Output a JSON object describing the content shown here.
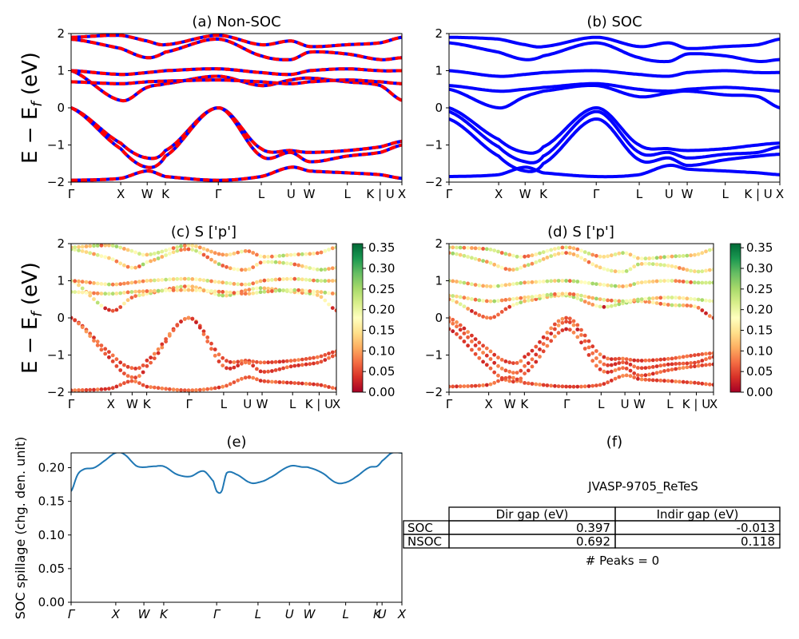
{
  "panels": {
    "a": {
      "title": "(a) Non-SOC"
    },
    "b": {
      "title": "(b) SOC"
    },
    "c": {
      "title": "(c)  S ['p']"
    },
    "d": {
      "title": "(d) S ['p']"
    },
    "e": {
      "title": "(e)"
    },
    "f": {
      "title": "(f)"
    }
  },
  "ylabel_band": "E − E",
  "ylabel_band_sub": "f",
  "ylabel_band_unit": " (eV)",
  "ylabel_spillage": "SOC spillage (chg. den. unit)",
  "kpath_labels": [
    "Γ",
    "X",
    "W",
    "K",
    "Γ",
    "L",
    "U",
    "W",
    "L",
    "K | U",
    "X"
  ],
  "kpath_labels_e": [
    "Γ",
    "X",
    "W",
    "K",
    "Γ",
    "L",
    "U",
    "W",
    "L",
    "K",
    "U",
    "X"
  ],
  "colors": {
    "soc": "#0000ff",
    "nonsoc_dash": "#ff0000",
    "spillage": "#1f77b4"
  },
  "colorbar": {
    "colormap": "RdYlGn",
    "min": 0.0,
    "max": 0.36,
    "ticks": [
      "0.00",
      "0.05",
      "0.10",
      "0.15",
      "0.20",
      "0.25",
      "0.30",
      "0.35"
    ]
  },
  "table": {
    "material": "JVASP-9705_ReTeS",
    "columns": [
      "Dir gap (eV)",
      "Indir gap (eV)"
    ],
    "rows": [
      {
        "label": "SOC",
        "dir": "0.397",
        "indir": "-0.013"
      },
      {
        "label": "NSOC",
        "dir": "0.692",
        "indir": "0.118"
      }
    ],
    "peaks": "# Peaks = 0"
  },
  "chart_data": [
    {
      "type": "line",
      "title": "(a) Non-SOC",
      "ylabel": "E − E_f (eV)",
      "ylim": [
        -2,
        2
      ],
      "yticks": [
        -2,
        -1,
        0,
        1,
        2
      ],
      "x_tick_labels": [
        "Γ",
        "X",
        "W",
        "K",
        "Γ",
        "L",
        "U",
        "W",
        "L",
        "K | U",
        "X"
      ],
      "x_tick_positions": [
        0,
        0.15,
        0.23,
        0.285,
        0.445,
        0.575,
        0.665,
        0.72,
        0.835,
        0.935,
        1.0
      ],
      "series": [
        {
          "values_at_ticks": [
            0.0,
            -0.95,
            -1.35,
            -1.15,
            0.0,
            -1.1,
            -1.15,
            -1.2,
            -1.15,
            -1.05,
            -0.9
          ]
        },
        {
          "values_at_ticks": [
            0.0,
            -1.1,
            -1.6,
            -1.3,
            0.0,
            -1.3,
            -1.2,
            -1.45,
            -1.3,
            -1.2,
            -1.0
          ]
        },
        {
          "values_at_ticks": [
            -1.95,
            -1.9,
            -1.7,
            -1.85,
            -1.95,
            -1.85,
            -1.6,
            -1.7,
            -1.75,
            -1.8,
            -1.9
          ]
        },
        {
          "values_at_ticks": [
            1.0,
            0.2,
            0.55,
            0.65,
            0.85,
            0.6,
            0.75,
            0.8,
            0.7,
            0.6,
            0.2
          ]
        },
        {
          "values_at_ticks": [
            0.7,
            0.65,
            0.7,
            0.72,
            0.75,
            0.7,
            0.65,
            0.7,
            0.75,
            0.7,
            0.65
          ]
        },
        {
          "values_at_ticks": [
            1.0,
            0.9,
            0.95,
            1.0,
            1.05,
            0.95,
            0.9,
            1.0,
            1.05,
            1.0,
            1.0
          ]
        },
        {
          "values_at_ticks": [
            1.85,
            1.6,
            1.35,
            1.5,
            1.85,
            1.4,
            1.3,
            1.5,
            1.45,
            1.3,
            1.35
          ]
        },
        {
          "values_at_ticks": [
            1.9,
            1.95,
            1.8,
            1.7,
            1.95,
            1.7,
            1.8,
            1.65,
            1.7,
            1.75,
            1.9
          ]
        }
      ]
    },
    {
      "type": "line",
      "title": "(b) SOC",
      "ylim": [
        -2,
        2
      ],
      "yticks": [
        -2,
        -1,
        0,
        1,
        2
      ],
      "x_tick_labels": [
        "Γ",
        "X",
        "W",
        "K",
        "Γ",
        "L",
        "U",
        "W",
        "L",
        "K | U",
        "X"
      ],
      "series": [
        {
          "values_at_ticks": [
            0.0,
            -0.85,
            -1.2,
            -1.05,
            0.0,
            -1.0,
            -1.1,
            -1.15,
            -1.1,
            -1.0,
            -0.95
          ]
        },
        {
          "values_at_ticks": [
            -0.1,
            -1.05,
            -1.45,
            -1.3,
            -0.1,
            -1.2,
            -1.2,
            -1.35,
            -1.25,
            -1.2,
            -1.05
          ]
        },
        {
          "values_at_ticks": [
            -0.3,
            -1.3,
            -1.7,
            -1.5,
            -0.3,
            -1.4,
            -1.35,
            -1.55,
            -1.4,
            -1.3,
            -1.25
          ]
        },
        {
          "values_at_ticks": [
            -1.85,
            -1.8,
            -1.6,
            -1.75,
            -1.85,
            -1.8,
            -1.55,
            -1.65,
            -1.7,
            -1.75,
            -1.8
          ]
        },
        {
          "values_at_ticks": [
            0.5,
            0.0,
            0.3,
            0.45,
            0.6,
            0.3,
            0.4,
            0.45,
            0.35,
            0.3,
            0.0
          ]
        },
        {
          "values_at_ticks": [
            0.6,
            0.45,
            0.5,
            0.55,
            0.65,
            0.5,
            0.45,
            0.5,
            0.55,
            0.5,
            0.45
          ]
        },
        {
          "values_at_ticks": [
            1.0,
            0.85,
            0.9,
            0.95,
            1.0,
            0.9,
            0.85,
            0.95,
            1.0,
            0.95,
            0.95
          ]
        },
        {
          "values_at_ticks": [
            1.75,
            1.5,
            1.3,
            1.4,
            1.75,
            1.35,
            1.25,
            1.45,
            1.4,
            1.25,
            1.3
          ]
        },
        {
          "values_at_ticks": [
            1.9,
            1.85,
            1.7,
            1.65,
            1.9,
            1.65,
            1.75,
            1.6,
            1.65,
            1.7,
            1.85
          ]
        }
      ]
    },
    {
      "type": "scatter",
      "title": "(c)  S ['p']",
      "ylim": [
        -2,
        2
      ],
      "colorbar_range": [
        0.0,
        0.36
      ]
    },
    {
      "type": "scatter",
      "title": "(d) S ['p']",
      "ylim": [
        -2,
        2
      ],
      "colorbar_range": [
        0.0,
        0.36
      ]
    },
    {
      "type": "line",
      "title": "(e)",
      "ylabel": "SOC spillage (chg. den. unit)",
      "ylim": [
        0.0,
        0.222
      ],
      "yticks": [
        "0.00",
        "0.05",
        "0.10",
        "0.15",
        "0.20"
      ],
      "x_tick_labels": [
        "Γ",
        "X",
        "W",
        "K",
        "Γ",
        "L",
        "U",
        "W",
        "L",
        "K",
        "U",
        "X"
      ],
      "x_tick_positions": [
        0,
        0.135,
        0.22,
        0.28,
        0.44,
        0.565,
        0.66,
        0.72,
        0.83,
        0.925,
        0.94,
        1.0
      ],
      "x": [
        0,
        0.02,
        0.04,
        0.07,
        0.1,
        0.135,
        0.16,
        0.2,
        0.25,
        0.28,
        0.32,
        0.36,
        0.4,
        0.43,
        0.44,
        0.455,
        0.47,
        0.5,
        0.54,
        0.565,
        0.6,
        0.66,
        0.7,
        0.72,
        0.76,
        0.8,
        0.83,
        0.86,
        0.9,
        0.925,
        0.94,
        0.97,
        1.0
      ],
      "values": [
        0.165,
        0.19,
        0.198,
        0.2,
        0.21,
        0.222,
        0.22,
        0.202,
        0.202,
        0.202,
        0.19,
        0.187,
        0.195,
        0.18,
        0.165,
        0.165,
        0.192,
        0.19,
        0.178,
        0.178,
        0.185,
        0.202,
        0.201,
        0.2,
        0.192,
        0.178,
        0.178,
        0.186,
        0.2,
        0.202,
        0.21,
        0.222,
        0.222
      ]
    }
  ]
}
